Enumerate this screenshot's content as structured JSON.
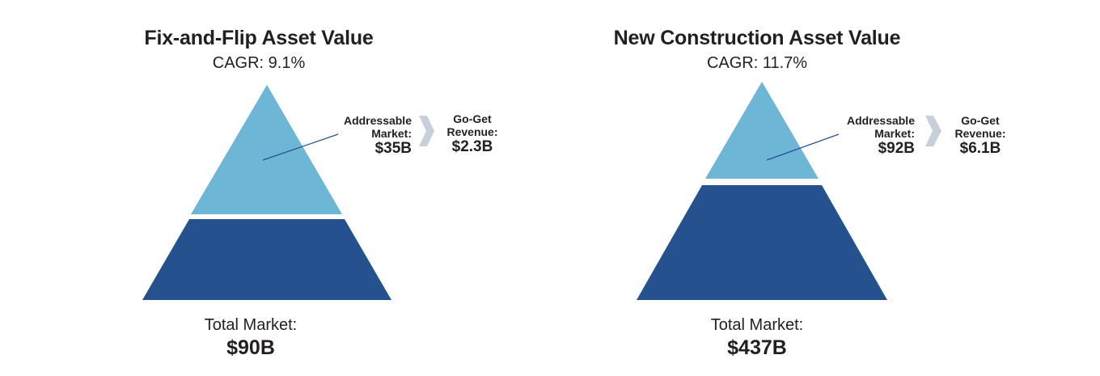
{
  "colors": {
    "addressable": "#6db6d5",
    "total": "#25528e",
    "arrow": "#c7cfda",
    "leader_line": "#25528e"
  },
  "chart_data": [
    {
      "type": "pyramid",
      "title": "Fix-and-Flip Asset Value",
      "subtitle": "CAGR: 9.1%",
      "segments": [
        {
          "label": "Addressable Market:",
          "value_label": "$35B",
          "value": 35
        },
        {
          "label": "Total Market:",
          "value_label": "$90B",
          "value": 90
        }
      ],
      "callout": {
        "label": "Go-Get Revenue:",
        "value_label": "$2.3B",
        "value": 2.3
      }
    },
    {
      "type": "pyramid",
      "title": "New Construction Asset Value",
      "subtitle": "CAGR: 11.7%",
      "segments": [
        {
          "label": "Addressable Market:",
          "value_label": "$92B",
          "value": 92
        },
        {
          "label": "Total Market:",
          "value_label": "$437B",
          "value": 437
        }
      ],
      "callout": {
        "label": "Go-Get Revenue:",
        "value_label": "$6.1B",
        "value": 6.1
      }
    }
  ]
}
